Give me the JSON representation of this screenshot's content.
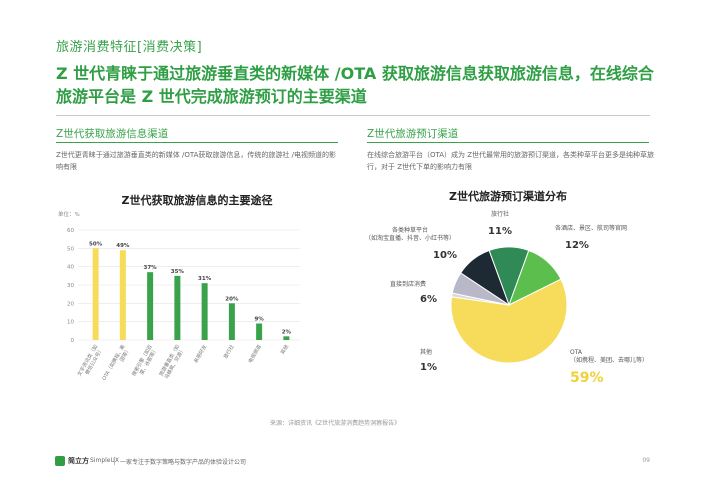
{
  "header": {
    "section_tag": "旅游消费特征[消费决策]",
    "headline": "Z 世代青睐于通过旅游垂直类的新媒体 /OTA 获取旅游信息获取旅游信息，在线综合旅游平台是 Z 世代完成旅游预订的主要渠道"
  },
  "left": {
    "title": "Z世代获取旅游信息渠道",
    "description": "Z世代更青睐于通过旅游垂直类的新媒体 /OTA获取旅游信息，传统的旅游社 /电视频道的影响有限"
  },
  "right": {
    "title": "Z世代旅游预订渠道",
    "description": "在线综合旅游平台（OTA）成为 Z世代最常用的旅游预订渠道，各类种草平台更多是纯种草旅行，对于 Z世代下单的影响力有限"
  },
  "chart_data": [
    {
      "type": "bar",
      "title": "Z世代获取旅游信息的主要途径",
      "unit_label": "单位：%",
      "categories": [
        "文字资讯类旅游（如微信公众号）",
        "OTA（如携程、美团）",
        "搜索引擎（如百度）",
        "旅游垂直社区（如马蜂窝）",
        "朋友推荐",
        "旅行社",
        "电视频道",
        "其他"
      ],
      "category_labels_short": [
        "文字资讯类（如\n微信公众号）",
        "OTA（如携程、美\n团等）",
        "搜索引擎（如百\n度、谷歌等）",
        "旅游垂直类（如\n马蜂窝、穷游）",
        "亲朋好友",
        "旅行社",
        "电视频道",
        "其他"
      ],
      "values": [
        50,
        49,
        37,
        35,
        31,
        20,
        9,
        2
      ],
      "value_labels": [
        "50%",
        "49%",
        "37%",
        "35%",
        "31%",
        "20%",
        "9%",
        "2%"
      ],
      "colors": [
        "#f7dc5c",
        "#f7dc5c",
        "#3aa24b",
        "#3aa24b",
        "#3aa24b",
        "#3aa24b",
        "#3aa24b",
        "#3aa24b"
      ],
      "yticks": [
        0,
        10,
        20,
        30,
        40,
        50,
        60
      ],
      "ylim": [
        0,
        60
      ],
      "grid": true
    },
    {
      "type": "pie",
      "title": "Z世代旅游预订渠道分布",
      "slices": [
        {
          "label": "旅行社",
          "value": 11,
          "value_label": "11%",
          "color": "#2f8a56"
        },
        {
          "label": "各酒店、景区、航司等官网",
          "value": 12,
          "value_label": "12%",
          "color": "#5cbf4d"
        },
        {
          "label": "OTA\n（如携程、美团、去哪儿等）",
          "value": 59,
          "value_label": "59%",
          "color": "#f7dc5c"
        },
        {
          "label": "其他",
          "value": 1,
          "value_label": "1%",
          "color": "#d9d9d9"
        },
        {
          "label": "直接到店消费",
          "value": 6,
          "value_label": "6%",
          "color": "#b8b8c8"
        },
        {
          "label": "各类种草平台\n（如淘宝直播、抖音、小红书等）",
          "value": 10,
          "value_label": "10%",
          "color": "#1e2a33"
        }
      ]
    }
  ],
  "source": "来源：详细资讯《Z世代旅游消费趋势洞察报告》",
  "footer": {
    "brand": "简立方",
    "brand_sub": "SimpleUX",
    "slogan": "一家专注于数字策略与数字产品的体验设计公司",
    "page": "09"
  }
}
